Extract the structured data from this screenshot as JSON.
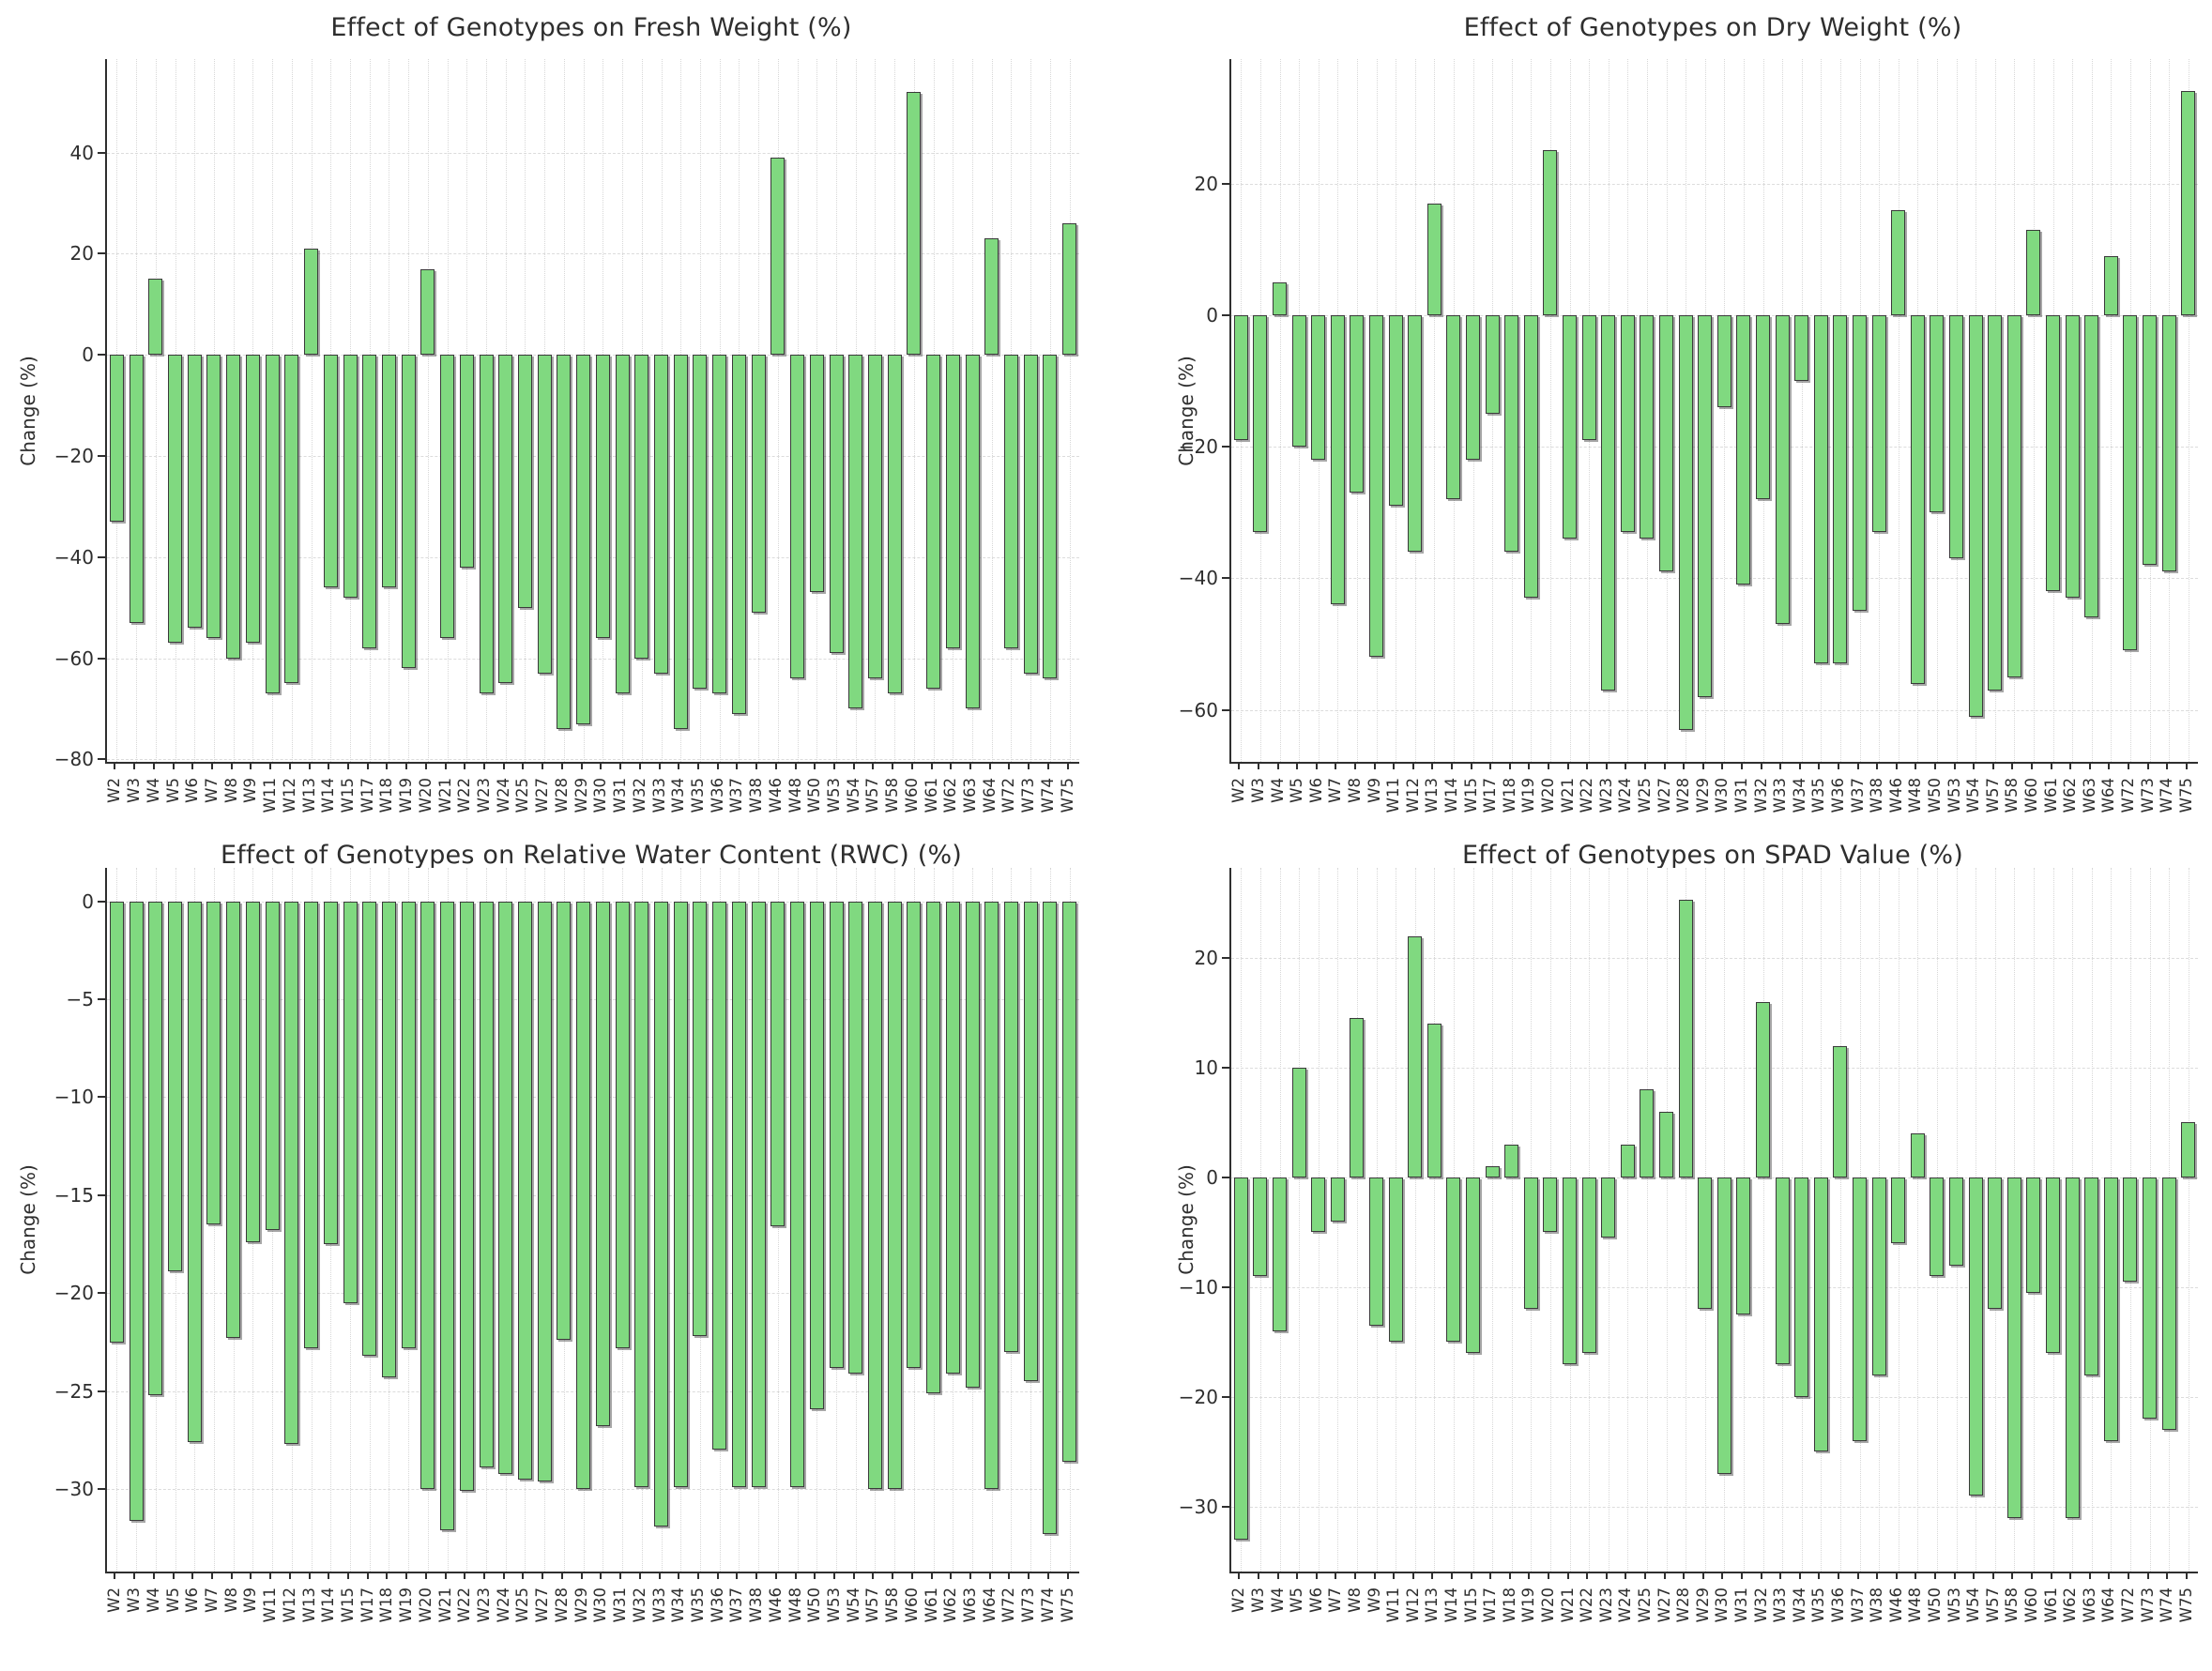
{
  "figure": {
    "background_color": "#ffffff",
    "bar_fill_color": "#80d980",
    "bar_edge_color": "#3a3a3a",
    "grid_color": "#dcdcdc",
    "axis_color": "#2f2f2f",
    "text_color": "#2e2e2e"
  },
  "categories": [
    "W2",
    "W3",
    "W4",
    "W5",
    "W6",
    "W7",
    "W8",
    "W9",
    "W11",
    "W12",
    "W13",
    "W14",
    "W15",
    "W17",
    "W18",
    "W19",
    "W20",
    "W21",
    "W22",
    "W23",
    "W24",
    "W25",
    "W27",
    "W28",
    "W29",
    "W30",
    "W31",
    "W32",
    "W33",
    "W34",
    "W35",
    "W36",
    "W37",
    "W38",
    "W46",
    "W48",
    "W50",
    "W53",
    "W54",
    "W57",
    "W58",
    "W60",
    "W61",
    "W62",
    "W63",
    "W64",
    "W72",
    "W73",
    "W74",
    "W75"
  ],
  "chart_data": [
    {
      "type": "bar",
      "title": "Effect of Genotypes on Fresh Weight (%)",
      "xlabel": "",
      "ylabel": "Change (%)",
      "ylim": [
        -80.5,
        58.5
      ],
      "yticks": [
        40,
        20,
        0,
        -20,
        -40,
        -60,
        -80
      ],
      "grid": true,
      "legend_position": "none",
      "categories": [
        "W2",
        "W3",
        "W4",
        "W5",
        "W6",
        "W7",
        "W8",
        "W9",
        "W11",
        "W12",
        "W13",
        "W14",
        "W15",
        "W17",
        "W18",
        "W19",
        "W20",
        "W21",
        "W22",
        "W23",
        "W24",
        "W25",
        "W27",
        "W28",
        "W29",
        "W30",
        "W31",
        "W32",
        "W33",
        "W34",
        "W35",
        "W36",
        "W37",
        "W38",
        "W46",
        "W48",
        "W50",
        "W53",
        "W54",
        "W57",
        "W58",
        "W60",
        "W61",
        "W62",
        "W63",
        "W64",
        "W72",
        "W73",
        "W74",
        "W75"
      ],
      "values": [
        -33,
        -53,
        15,
        -57,
        -54,
        -56,
        -60,
        -57,
        -67,
        -65,
        21,
        -46,
        -48,
        -58,
        -46,
        -62,
        17,
        -56,
        -42,
        -67,
        -65,
        -50,
        -63,
        -74,
        -73,
        -56,
        -67,
        -60,
        -63,
        -74,
        -66,
        -67,
        -71,
        -51,
        39,
        -64,
        -47,
        -59,
        -70,
        -64,
        -67,
        52,
        -66,
        -58,
        -70,
        23,
        -58,
        -63,
        -64,
        26
      ]
    },
    {
      "type": "bar",
      "title": "Effect of Genotypes on Dry Weight (%)",
      "xlabel": "",
      "ylabel": "Change (%)",
      "ylim": [
        -67.9,
        38.9
      ],
      "yticks": [
        20,
        0,
        -20,
        -40,
        -60
      ],
      "grid": true,
      "legend_position": "none",
      "categories": [
        "W2",
        "W3",
        "W4",
        "W5",
        "W6",
        "W7",
        "W8",
        "W9",
        "W11",
        "W12",
        "W13",
        "W14",
        "W15",
        "W17",
        "W18",
        "W19",
        "W20",
        "W21",
        "W22",
        "W23",
        "W24",
        "W25",
        "W27",
        "W28",
        "W29",
        "W30",
        "W31",
        "W32",
        "W33",
        "W34",
        "W35",
        "W36",
        "W37",
        "W38",
        "W46",
        "W48",
        "W50",
        "W53",
        "W54",
        "W57",
        "W58",
        "W60",
        "W61",
        "W62",
        "W63",
        "W64",
        "W72",
        "W73",
        "W74",
        "W75"
      ],
      "values": [
        -19,
        -33,
        5,
        -20,
        -22,
        -44,
        -27,
        -52,
        -29,
        -36,
        17,
        -28,
        -22,
        -15,
        -36,
        -43,
        25,
        -34,
        -19,
        -57,
        -33,
        -34,
        -39,
        -63,
        -58,
        -14,
        -41,
        -28,
        -47,
        -10,
        -53,
        -53,
        -45,
        -33,
        16,
        -56,
        -30,
        -37,
        -61,
        -57,
        -55,
        13,
        -42,
        -43,
        -46,
        9,
        -51,
        -38,
        -39,
        34
      ]
    },
    {
      "type": "bar",
      "title": "Effect of Genotypes on Relative Water Content (RWC) (%)",
      "xlabel": "",
      "ylabel": "Change (%)",
      "ylim": [
        -34.2,
        1.7
      ],
      "yticks": [
        0,
        -5,
        -10,
        -15,
        -20,
        -25,
        -30
      ],
      "grid": true,
      "legend_position": "none",
      "categories": [
        "W2",
        "W3",
        "W4",
        "W5",
        "W6",
        "W7",
        "W8",
        "W9",
        "W11",
        "W12",
        "W13",
        "W14",
        "W15",
        "W17",
        "W18",
        "W19",
        "W20",
        "W21",
        "W22",
        "W23",
        "W24",
        "W25",
        "W27",
        "W28",
        "W29",
        "W30",
        "W31",
        "W32",
        "W33",
        "W34",
        "W35",
        "W36",
        "W37",
        "W38",
        "W46",
        "W48",
        "W50",
        "W53",
        "W54",
        "W57",
        "W58",
        "W60",
        "W61",
        "W62",
        "W63",
        "W64",
        "W72",
        "W73",
        "W74",
        "W75"
      ],
      "values": [
        -22.5,
        -31.6,
        -25.2,
        -18.9,
        -27.6,
        -16.5,
        -22.3,
        -17.4,
        -16.8,
        -27.7,
        -22.8,
        -17.5,
        -20.5,
        -23.2,
        -24.3,
        -22.8,
        -30.0,
        -32.1,
        -30.1,
        -28.9,
        -29.2,
        -29.5,
        -29.6,
        -22.4,
        -30.0,
        -26.8,
        -22.8,
        -29.9,
        -31.9,
        -29.9,
        -22.2,
        -28.0,
        -29.9,
        -29.9,
        -16.6,
        -29.9,
        -25.9,
        -23.8,
        -24.1,
        -30.0,
        -30.0,
        -23.8,
        -25.1,
        -24.1,
        -24.8,
        -30.0,
        -23.0,
        -24.5,
        -32.3,
        -28.6
      ]
    },
    {
      "type": "bar",
      "title": "Effect of Genotypes on SPAD Value (%)",
      "xlabel": "",
      "ylabel": "Change (%)",
      "ylim": [
        -35.9,
        28.2
      ],
      "yticks": [
        20,
        10,
        0,
        -10,
        -20,
        -30
      ],
      "grid": true,
      "legend_position": "none",
      "categories": [
        "W2",
        "W3",
        "W4",
        "W5",
        "W6",
        "W7",
        "W8",
        "W9",
        "W11",
        "W12",
        "W13",
        "W14",
        "W15",
        "W17",
        "W18",
        "W19",
        "W20",
        "W21",
        "W22",
        "W23",
        "W24",
        "W25",
        "W27",
        "W28",
        "W29",
        "W30",
        "W31",
        "W32",
        "W33",
        "W34",
        "W35",
        "W36",
        "W37",
        "W38",
        "W46",
        "W48",
        "W50",
        "W53",
        "W54",
        "W57",
        "W58",
        "W60",
        "W61",
        "W62",
        "W63",
        "W64",
        "W72",
        "W73",
        "W74",
        "W75"
      ],
      "values": [
        -33,
        -9,
        -14,
        10,
        -5,
        -4,
        14.5,
        -13.5,
        -15,
        22,
        14,
        -15,
        -16,
        1,
        3,
        -12,
        -5,
        -17,
        -16,
        -5.5,
        3,
        8,
        6,
        25.3,
        -12,
        -27,
        -12.5,
        16,
        -17,
        -20,
        -25,
        12,
        -24,
        -18,
        -6,
        4,
        -9,
        -8,
        -29,
        -12,
        -31,
        -10.5,
        -16,
        -31,
        -18,
        -24,
        -9.5,
        -22,
        -23,
        5
      ]
    }
  ]
}
